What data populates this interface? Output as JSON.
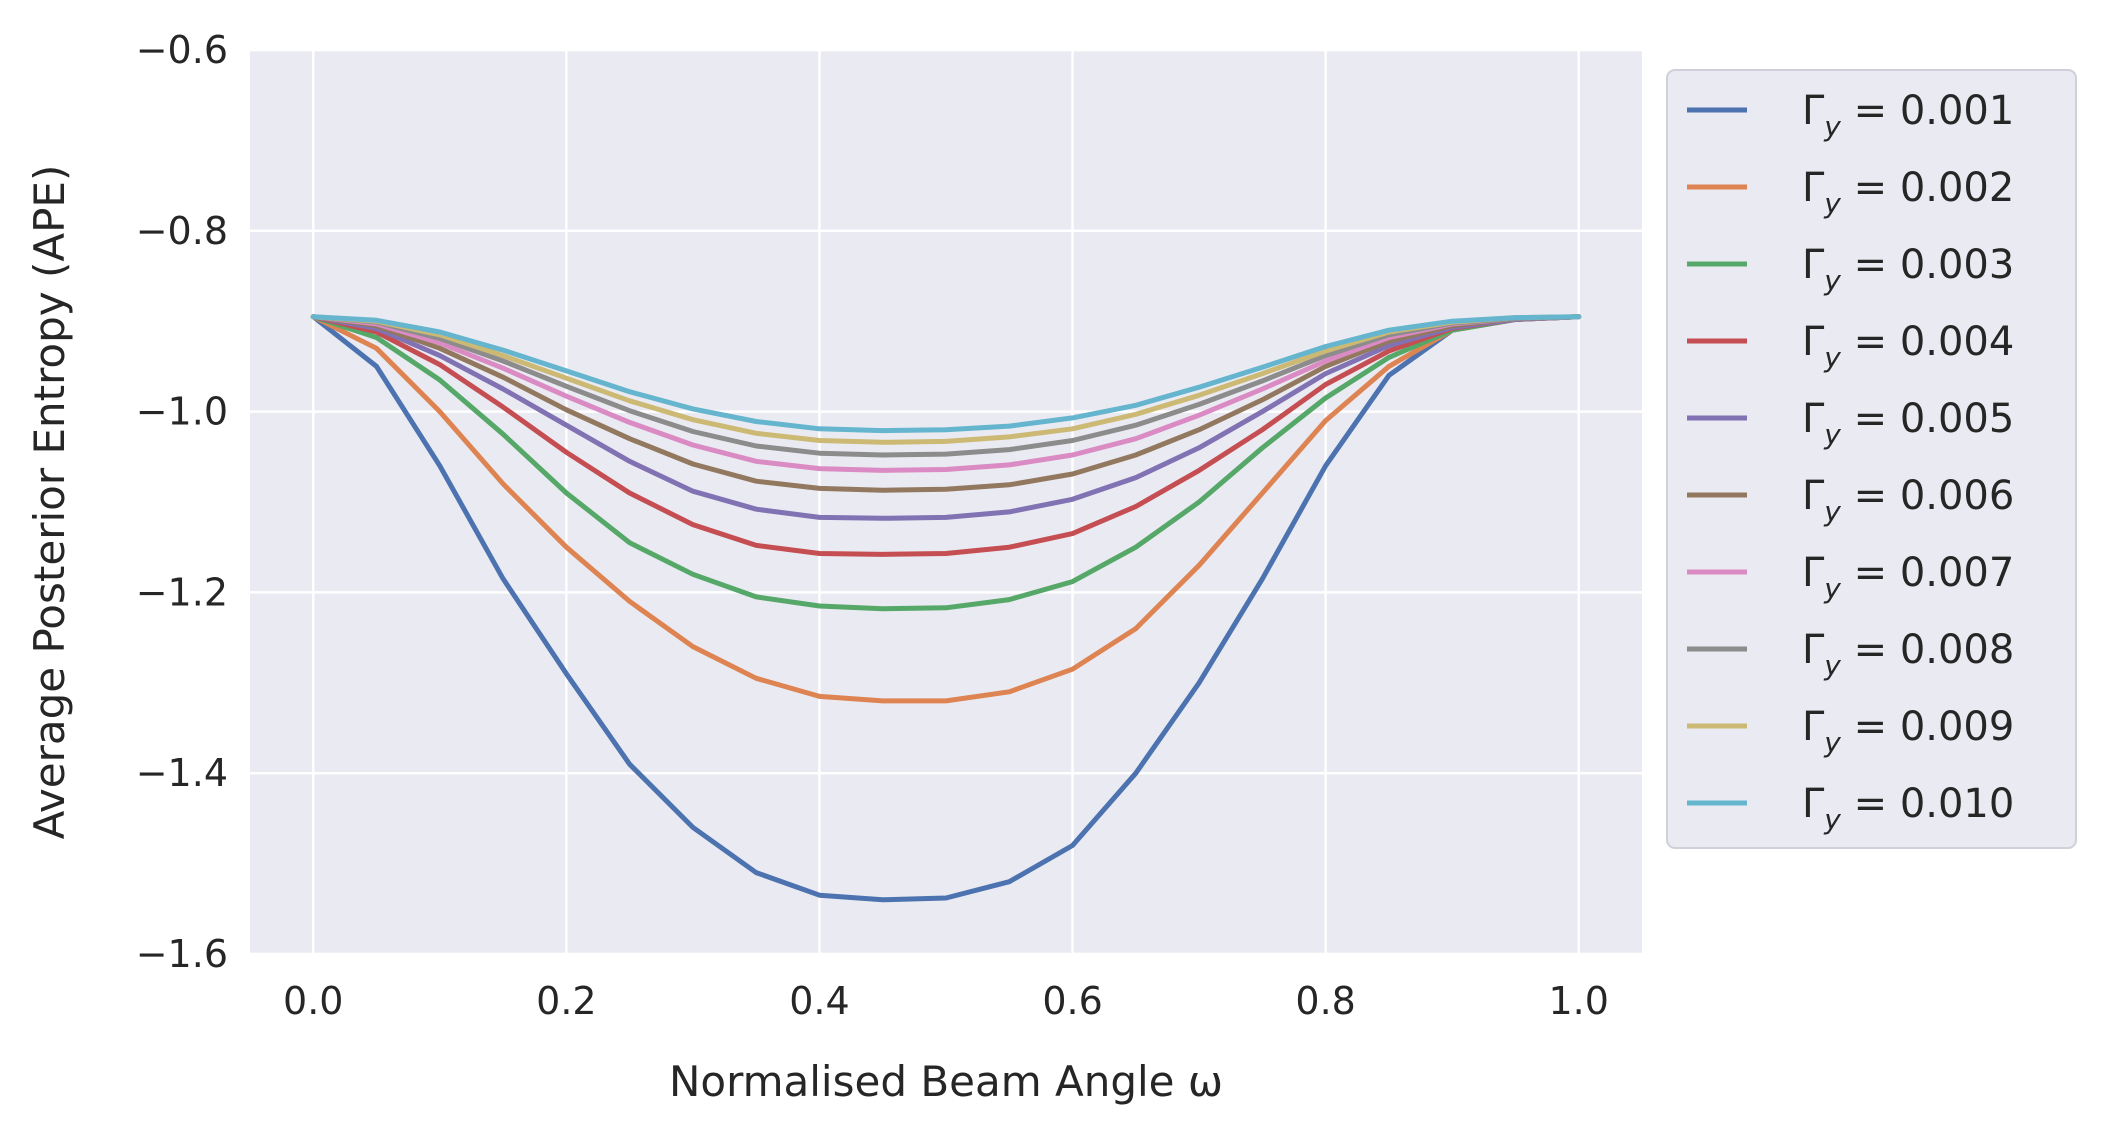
{
  "chart_data": {
    "type": "line",
    "title": "",
    "xlabel": "Normalised Beam Angle ω",
    "ylabel": "Average Posterior Entropy (APE)",
    "xlim": [
      -0.05,
      1.05
    ],
    "ylim": [
      -1.6,
      -0.6
    ],
    "xticks": [
      0.0,
      0.2,
      0.4,
      0.6,
      0.8,
      1.0
    ],
    "xtick_labels": [
      "0.0",
      "0.2",
      "0.4",
      "0.6",
      "0.8",
      "1.0"
    ],
    "yticks": [
      -1.6,
      -1.4,
      -1.2,
      -1.0,
      -0.8,
      -0.6
    ],
    "ytick_labels": [
      "−1.6",
      "−1.4",
      "−1.2",
      "−1.0",
      "−0.8",
      "−0.6"
    ],
    "grid": true,
    "legend_position": "outside-right-top",
    "x": [
      0.0,
      0.05,
      0.1,
      0.15,
      0.2,
      0.25,
      0.3,
      0.35,
      0.4,
      0.45,
      0.5,
      0.55,
      0.6,
      0.65,
      0.7,
      0.75,
      0.8,
      0.85,
      0.9,
      0.95,
      1.0
    ],
    "series": [
      {
        "name_prefix": "Γ",
        "name_sub": "y",
        "name_suffix": " = 0.001",
        "color": "#4c72b0",
        "values": [
          -0.895,
          -0.95,
          -1.06,
          -1.185,
          -1.29,
          -1.39,
          -1.46,
          -1.51,
          -1.535,
          -1.54,
          -1.538,
          -1.52,
          -1.48,
          -1.4,
          -1.3,
          -1.185,
          -1.06,
          -0.96,
          -0.91,
          -0.898,
          -0.895
        ]
      },
      {
        "name_prefix": "Γ",
        "name_sub": "y",
        "name_suffix": " = 0.002",
        "color": "#dd8452",
        "values": [
          -0.895,
          -0.93,
          -1.0,
          -1.08,
          -1.15,
          -1.21,
          -1.26,
          -1.295,
          -1.315,
          -1.32,
          -1.32,
          -1.31,
          -1.285,
          -1.24,
          -1.17,
          -1.09,
          -1.01,
          -0.95,
          -0.91,
          -0.898,
          -0.895
        ]
      },
      {
        "name_prefix": "Γ",
        "name_sub": "y",
        "name_suffix": " = 0.003",
        "color": "#55a868",
        "values": [
          -0.895,
          -0.918,
          -0.965,
          -1.025,
          -1.09,
          -1.145,
          -1.18,
          -1.205,
          -1.215,
          -1.218,
          -1.217,
          -1.208,
          -1.188,
          -1.15,
          -1.1,
          -1.04,
          -0.985,
          -0.94,
          -0.91,
          -0.898,
          -0.895
        ]
      },
      {
        "name_prefix": "Γ",
        "name_sub": "y",
        "name_suffix": " = 0.004",
        "color": "#c44e52",
        "values": [
          -0.895,
          -0.912,
          -0.948,
          -0.995,
          -1.045,
          -1.09,
          -1.125,
          -1.148,
          -1.157,
          -1.158,
          -1.157,
          -1.15,
          -1.135,
          -1.105,
          -1.065,
          -1.02,
          -0.97,
          -0.933,
          -0.908,
          -0.898,
          -0.895
        ]
      },
      {
        "name_prefix": "Γ",
        "name_sub": "y",
        "name_suffix": " = 0.005",
        "color": "#8172b3",
        "values": [
          -0.895,
          -0.908,
          -0.938,
          -0.975,
          -1.015,
          -1.055,
          -1.088,
          -1.108,
          -1.117,
          -1.118,
          -1.117,
          -1.111,
          -1.097,
          -1.073,
          -1.04,
          -1.0,
          -0.958,
          -0.927,
          -0.907,
          -0.898,
          -0.895
        ]
      },
      {
        "name_prefix": "Γ",
        "name_sub": "y",
        "name_suffix": " = 0.006",
        "color": "#937860",
        "values": [
          -0.895,
          -0.905,
          -0.93,
          -0.962,
          -0.998,
          -1.03,
          -1.058,
          -1.077,
          -1.085,
          -1.087,
          -1.086,
          -1.081,
          -1.069,
          -1.048,
          -1.02,
          -0.987,
          -0.95,
          -0.922,
          -0.905,
          -0.897,
          -0.895
        ]
      },
      {
        "name_prefix": "Γ",
        "name_sub": "y",
        "name_suffix": " = 0.007",
        "color": "#da8bc3",
        "values": [
          -0.895,
          -0.903,
          -0.924,
          -0.952,
          -0.983,
          -1.012,
          -1.037,
          -1.055,
          -1.063,
          -1.065,
          -1.064,
          -1.059,
          -1.048,
          -1.03,
          -1.004,
          -0.975,
          -0.944,
          -0.918,
          -0.903,
          -0.897,
          -0.895
        ]
      },
      {
        "name_prefix": "Γ",
        "name_sub": "y",
        "name_suffix": " = 0.008",
        "color": "#8c8c8c",
        "values": [
          -0.895,
          -0.901,
          -0.919,
          -0.944,
          -0.972,
          -0.999,
          -1.022,
          -1.038,
          -1.046,
          -1.048,
          -1.047,
          -1.042,
          -1.032,
          -1.015,
          -0.992,
          -0.966,
          -0.938,
          -0.915,
          -0.902,
          -0.897,
          -0.895
        ]
      },
      {
        "name_prefix": "Γ",
        "name_sub": "y",
        "name_suffix": " = 0.009",
        "color": "#ccb974",
        "values": [
          -0.895,
          -0.9,
          -0.915,
          -0.938,
          -0.963,
          -0.988,
          -1.009,
          -1.024,
          -1.032,
          -1.034,
          -1.033,
          -1.028,
          -1.019,
          -1.003,
          -0.982,
          -0.958,
          -0.933,
          -0.912,
          -0.901,
          -0.896,
          -0.895
        ]
      },
      {
        "name_prefix": "Γ",
        "name_sub": "y",
        "name_suffix": " = 0.010",
        "color": "#64b5cd",
        "values": [
          -0.895,
          -0.899,
          -0.912,
          -0.932,
          -0.955,
          -0.978,
          -0.997,
          -1.011,
          -1.019,
          -1.021,
          -1.02,
          -1.016,
          -1.007,
          -0.993,
          -0.973,
          -0.951,
          -0.928,
          -0.91,
          -0.9,
          -0.896,
          -0.895
        ]
      }
    ]
  }
}
